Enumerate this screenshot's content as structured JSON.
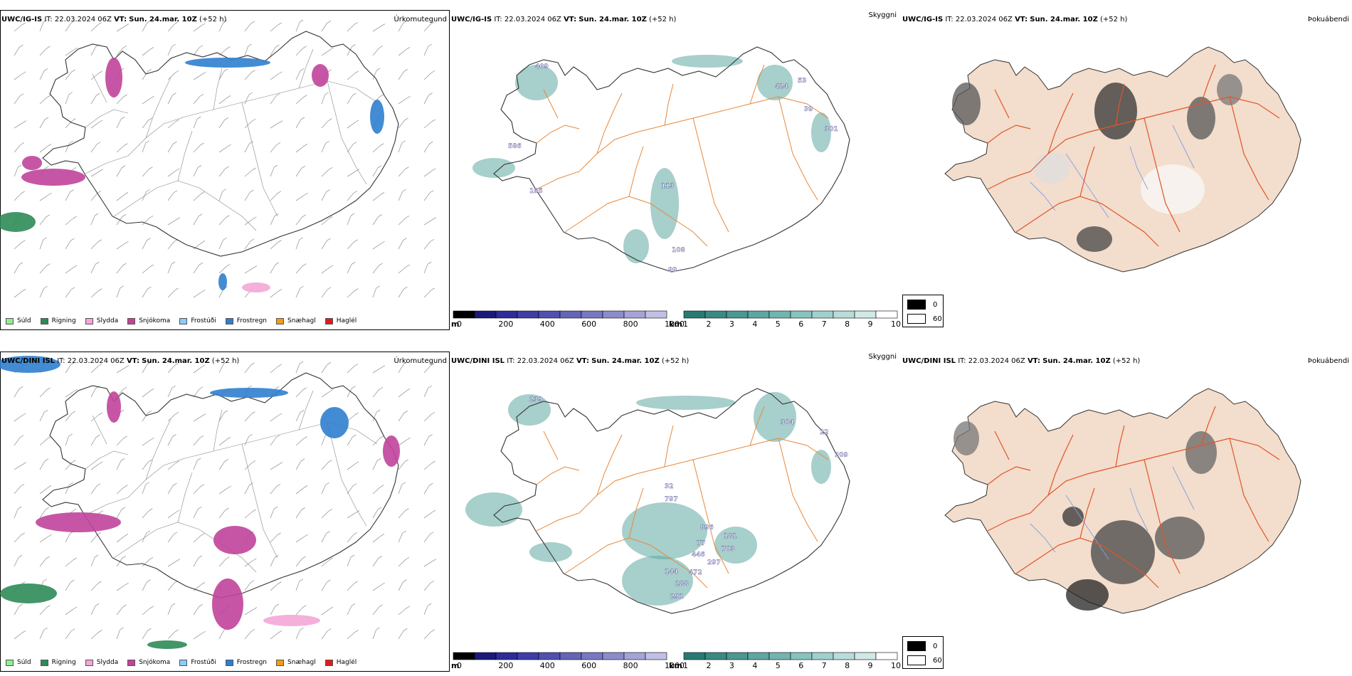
{
  "rows": [
    {
      "model": "UWC/IG-IS",
      "it_label": "IT:",
      "it_value": "22.03.2024 06Z",
      "vt_label": "VT:",
      "vt_value": "Sun. 24.mar. 10Z",
      "lead": "(+52 h)"
    },
    {
      "model": "UWC/DINI ISL",
      "it_label": "IT:",
      "it_value": "22.03.2024 06Z",
      "vt_label": "VT:",
      "vt_value": "Sun. 24.mar. 10Z",
      "lead": "(+52 h)"
    }
  ],
  "titles": {
    "precip_type": "Úrkomutegund",
    "visibility": "Skyggni",
    "fog": "Þokuábendi"
  },
  "precip_legend": [
    {
      "label": "Súld",
      "color": "#90ee90"
    },
    {
      "label": "Rigning",
      "color": "#2e8b57"
    },
    {
      "label": "Slydda",
      "color": "#f4a6d7"
    },
    {
      "label": "Snjókoma",
      "color": "#c0449b"
    },
    {
      "label": "Frostúði",
      "color": "#87cefa"
    },
    {
      "label": "Frostregn",
      "color": "#2f7fcf"
    },
    {
      "label": "Snæhagl",
      "color": "#f39c12"
    },
    {
      "label": "Haglél",
      "color": "#e31a1c"
    }
  ],
  "cbar_m": {
    "unit": "m",
    "ticks": [
      "0",
      "200",
      "400",
      "600",
      "800",
      "1000"
    ],
    "colors": [
      "#000000",
      "#1a1a7a",
      "#2c2c9a",
      "#3e3ea8",
      "#5050b0",
      "#6464b8",
      "#7878c2",
      "#8c8ccc",
      "#a4a4d8",
      "#c0c0e6"
    ]
  },
  "cbar_km": {
    "unit": "km",
    "ticks": [
      "1",
      "2",
      "3",
      "4",
      "5",
      "6",
      "7",
      "8",
      "9",
      "10"
    ],
    "colors": [
      "#2a7a74",
      "#3a8a84",
      "#4a9892",
      "#5ea7a1",
      "#72b5b0",
      "#88c3be",
      "#a0d0cc",
      "#b8dcd9",
      "#d0e8e6",
      "#ffffff"
    ]
  },
  "fog_legend": [
    {
      "label": "0",
      "color": "#000000"
    },
    {
      "label": "60",
      "color": "#ffffff"
    }
  ],
  "visibility_labels": {
    "row1": [
      "409",
      "586",
      "195",
      "113",
      "108",
      "99",
      "424",
      "53",
      "39",
      "301"
    ],
    "row2": [
      "239",
      "304",
      "22",
      "209",
      "32",
      "797",
      "896",
      "77",
      "181",
      "703",
      "446",
      "297",
      "144",
      "472",
      "288",
      "291"
    ]
  },
  "colors": {
    "map_outline": "#333333",
    "roads": "#e8883a",
    "rivers": "#7f9fe6",
    "fog_land": "#f3ddcc",
    "fog_roads": "#e0552a"
  }
}
